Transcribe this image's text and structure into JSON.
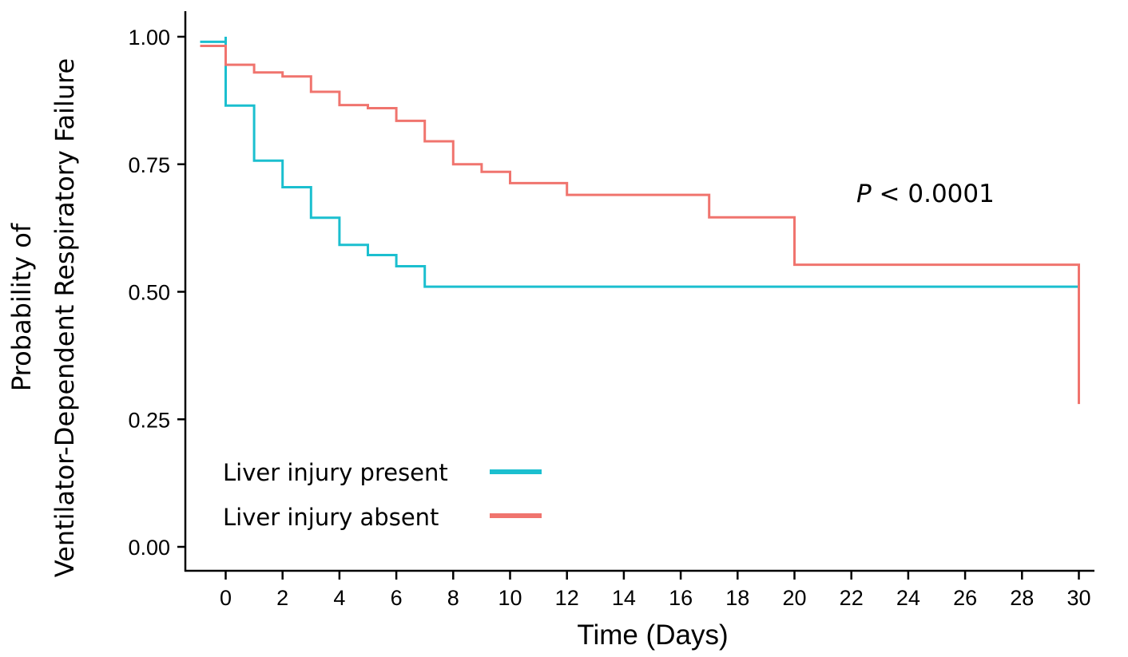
{
  "chart_data": {
    "type": "line",
    "step": true,
    "xlabel": "Time (Days)",
    "ylabel_lines": [
      "Probability of",
      "Ventilator-Dependent Respiratory Failure"
    ],
    "xlim": [
      -1.5,
      31.5
    ],
    "ylim": [
      -0.05,
      1.05
    ],
    "x_ticks": [
      0,
      2,
      4,
      6,
      8,
      10,
      12,
      14,
      16,
      18,
      20,
      22,
      24,
      26,
      28,
      30
    ],
    "x_tick_labels": [
      "0",
      "2",
      "4",
      "6",
      "8",
      "10",
      "12",
      "14",
      "16",
      "18",
      "20",
      "22",
      "24",
      "26",
      "28",
      "30"
    ],
    "y_ticks": [
      0,
      0.25,
      0.5,
      0.75,
      1.0
    ],
    "y_tick_labels": [
      "0.00",
      "0.25",
      "0.50",
      "0.75",
      "1.00"
    ],
    "grid": false,
    "legend_position": "bottom-left",
    "annotation": {
      "italic": "P",
      "text": " < 0.0001",
      "x": 24,
      "y": 0.69
    },
    "series": [
      {
        "name": "Liver injury present",
        "color": "#1bbfcf",
        "points": [
          [
            -0.9,
            0.99
          ],
          [
            0,
            1.0
          ],
          [
            0,
            0.865
          ],
          [
            1,
            0.757
          ],
          [
            2,
            0.705
          ],
          [
            3,
            0.645
          ],
          [
            4,
            0.592
          ],
          [
            5,
            0.572
          ],
          [
            6,
            0.55
          ],
          [
            7,
            0.51
          ],
          [
            30,
            0.51
          ]
        ]
      },
      {
        "name": "Liver injury absent",
        "color": "#f0746e",
        "points": [
          [
            -0.9,
            0.982
          ],
          [
            0,
            0.945
          ],
          [
            1,
            0.93
          ],
          [
            2,
            0.922
          ],
          [
            3,
            0.892
          ],
          [
            4,
            0.866
          ],
          [
            5,
            0.86
          ],
          [
            6,
            0.835
          ],
          [
            7,
            0.795
          ],
          [
            8,
            0.75
          ],
          [
            9,
            0.735
          ],
          [
            10,
            0.713
          ],
          [
            12,
            0.69
          ],
          [
            17,
            0.646
          ],
          [
            20,
            0.553
          ],
          [
            30,
            0.553
          ],
          [
            30,
            0.28
          ]
        ]
      }
    ]
  }
}
